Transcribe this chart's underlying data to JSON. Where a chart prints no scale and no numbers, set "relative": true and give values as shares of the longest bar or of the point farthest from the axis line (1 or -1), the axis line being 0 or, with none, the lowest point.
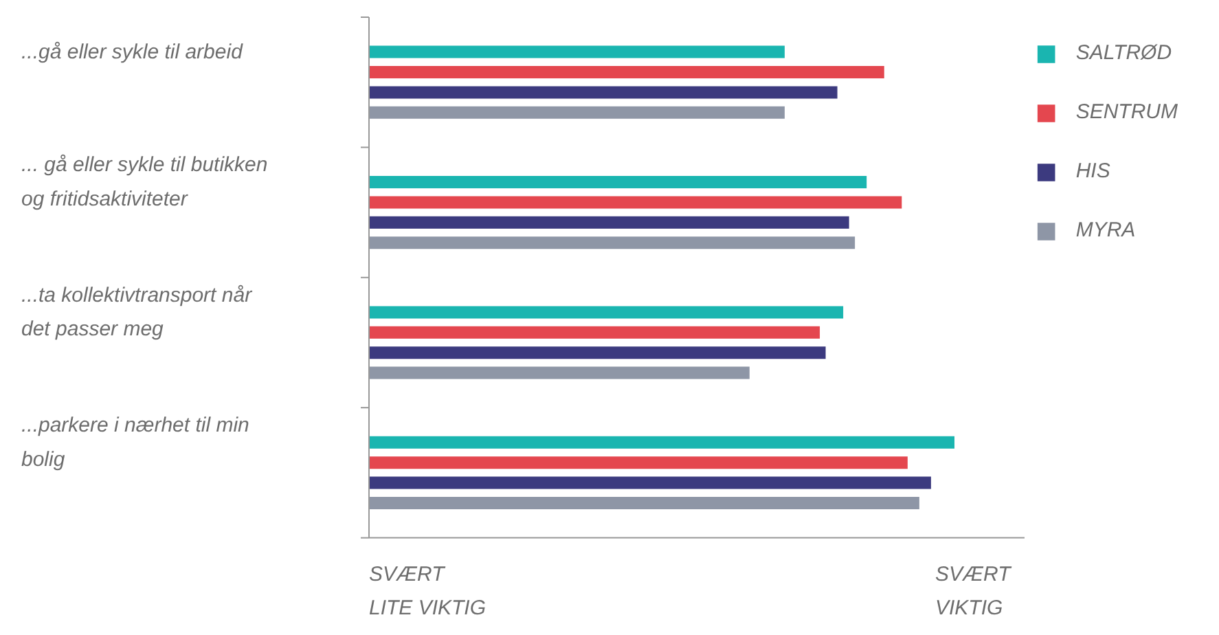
{
  "chart_data": {
    "type": "bar",
    "orientation": "horizontal",
    "relative": true,
    "legend": "top right",
    "grid": false,
    "categories": [
      "...gå eller sykle til arbeid",
      "... gå eller sykle til butikken\nog fritidsaktiviteter",
      "...ta kollektivtransport når\ndet passer meg",
      "...parkere i nærhet til min\nbolig"
    ],
    "series": [
      {
        "name": "SALTRØD",
        "color": "#1ab5b0",
        "values": [
          0.71,
          0.85,
          0.81,
          1
        ]
      },
      {
        "name": "SENTRUM",
        "color": "#e4474f",
        "values": [
          0.88,
          0.91,
          0.77,
          0.92
        ]
      },
      {
        "name": "HIS",
        "color": "#3c3a7f",
        "values": [
          0.8,
          0.82,
          0.78,
          0.96
        ]
      },
      {
        "name": "MYRA",
        "color": "#8e96a6",
        "values": [
          0.71,
          0.83,
          0.65,
          0.94
        ]
      }
    ],
    "annotations": [
      "SVÆRT\nLITE VIKTIG",
      "SVÆRT\nVIKTIG"
    ]
  }
}
